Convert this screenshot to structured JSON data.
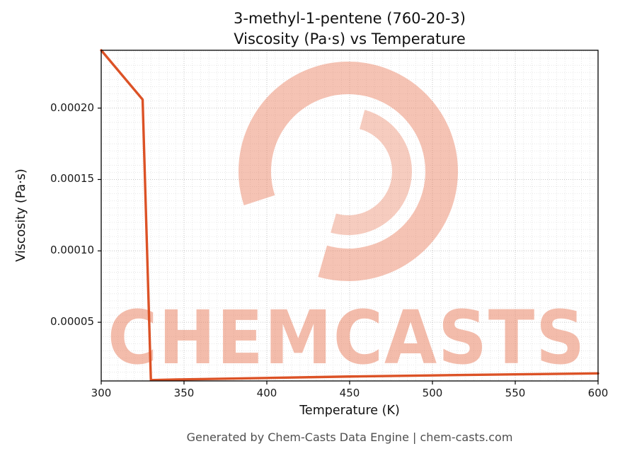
{
  "page": {
    "title_line1": "3-methyl-1-pentene (760-20-3)",
    "title_line2": "Viscosity (Pa·s) vs Temperature",
    "footer": "Generated by Chem-Casts Data Engine | chem-casts.com"
  },
  "watermark": {
    "text": "CHEMCASTS",
    "color": "#e87a58",
    "text_opacity": 0.5,
    "logo_opacity": 0.45
  },
  "chart_data": {
    "type": "line",
    "title": "3-methyl-1-pentene (760-20-3)\nViscosity (Pa·s) vs Temperature",
    "xlabel": "Temperature (K)",
    "ylabel": "Viscosity (Pa·s)",
    "xlim": [
      300,
      600
    ],
    "ylim": [
      8.9e-06,
      0.0002405
    ],
    "x_major_ticks": [
      300,
      350,
      400,
      450,
      500,
      550,
      600
    ],
    "x_minor_step": 5,
    "y_major_ticks": [
      5e-05,
      0.0001,
      0.00015,
      0.0002
    ],
    "y_tick_labels": [
      "0.00005",
      "0.00010",
      "0.00015",
      "0.00020"
    ],
    "y_minor_step": 5e-06,
    "grid": true,
    "legend": "none",
    "line_color": "#dc5226",
    "grid_major_color": "#c6c6c6",
    "grid_minor_color": "#e1e1e1",
    "series": [
      {
        "name": "viscosity",
        "points": [
          [
            300,
            0.0002405
          ],
          [
            325,
            0.000206
          ],
          [
            330,
            9.5e-06
          ],
          [
            350,
            1e-05
          ],
          [
            400,
            1.1e-05
          ],
          [
            450,
            1.2e-05
          ],
          [
            500,
            1.28e-05
          ],
          [
            550,
            1.35e-05
          ],
          [
            600,
            1.42e-05
          ]
        ]
      }
    ]
  }
}
